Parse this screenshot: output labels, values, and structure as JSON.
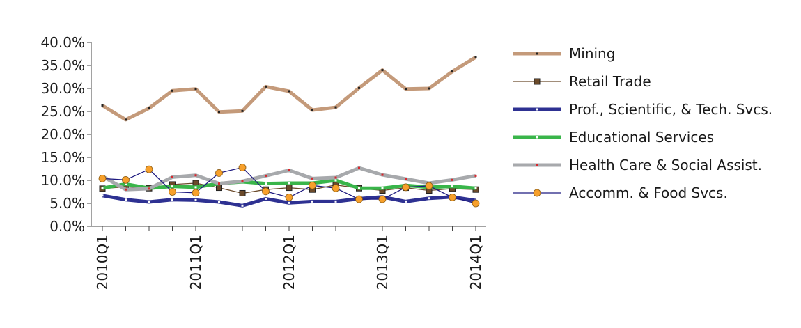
{
  "chart_data": {
    "type": "line",
    "x": [
      "2010Q1",
      "2010Q2",
      "2010Q3",
      "2010Q4",
      "2011Q1",
      "2011Q2",
      "2011Q3",
      "2011Q4",
      "2012Q1",
      "2012Q2",
      "2012Q3",
      "2012Q4",
      "2013Q1",
      "2013Q2",
      "2013Q3",
      "2013Q4",
      "2014Q1"
    ],
    "x_tick_labels": [
      "2010Q1",
      "2011Q1",
      "2012Q1",
      "2013Q1",
      "2014Q1"
    ],
    "y_tick_labels": [
      "0.0%",
      "5.0%",
      "10.0%",
      "15.0%",
      "20.0%",
      "25.0%",
      "30.0%",
      "35.0%",
      "40.0%"
    ],
    "ylim": [
      0,
      40
    ],
    "y_unit": "%",
    "grid": false,
    "legend_position": "right",
    "series": [
      {
        "name": "Mining",
        "color": "#c49a7a",
        "style": "thick-line-dot",
        "values": [
          26.3,
          23.2,
          25.7,
          29.5,
          29.9,
          24.9,
          25.1,
          30.4,
          29.4,
          25.3,
          25.9,
          30.1,
          34.0,
          29.9,
          30.0,
          33.7,
          36.8
        ]
      },
      {
        "name": "Retail Trade",
        "color": "#6b4a2a",
        "style": "thin-line-square",
        "values": [
          8.2,
          8.6,
          8.3,
          9.1,
          9.4,
          8.4,
          7.2,
          8.0,
          8.4,
          8.0,
          9.0,
          8.3,
          7.8,
          8.4,
          7.8,
          8.2,
          8.0
        ]
      },
      {
        "name": "Prof., Scientific, & Tech. Svcs.",
        "color": "#2e3192",
        "style": "thick-line-dot",
        "values": [
          6.7,
          5.8,
          5.3,
          5.8,
          5.7,
          5.3,
          4.5,
          6.0,
          5.1,
          5.4,
          5.4,
          6.0,
          6.4,
          5.4,
          6.1,
          6.4,
          5.6
        ]
      },
      {
        "name": "Educational Services",
        "color": "#39b54a",
        "style": "thick-line-dot",
        "values": [
          8.3,
          9.2,
          8.3,
          8.7,
          8.5,
          9.3,
          9.7,
          9.3,
          9.4,
          9.4,
          10.0,
          8.3,
          8.3,
          8.9,
          8.5,
          8.7,
          8.3
        ]
      },
      {
        "name": "Health Care & Social Assist.",
        "color": "#a7a9ac",
        "style": "thick-line-dot",
        "values": [
          10.9,
          8.0,
          8.2,
          10.7,
          11.1,
          9.3,
          9.8,
          11.0,
          12.2,
          10.4,
          10.6,
          12.7,
          11.2,
          10.3,
          9.4,
          10.1,
          11.0
        ]
      },
      {
        "name": "Accomm. & Food Svcs.",
        "color": "#1e1a80",
        "marker_color": "#f7a02b",
        "style": "thin-line-circle",
        "values": [
          10.4,
          10.1,
          12.4,
          7.5,
          7.3,
          11.6,
          12.8,
          7.6,
          6.3,
          8.9,
          8.3,
          5.9,
          5.9,
          8.5,
          8.8,
          6.3,
          5.0
        ]
      }
    ]
  }
}
